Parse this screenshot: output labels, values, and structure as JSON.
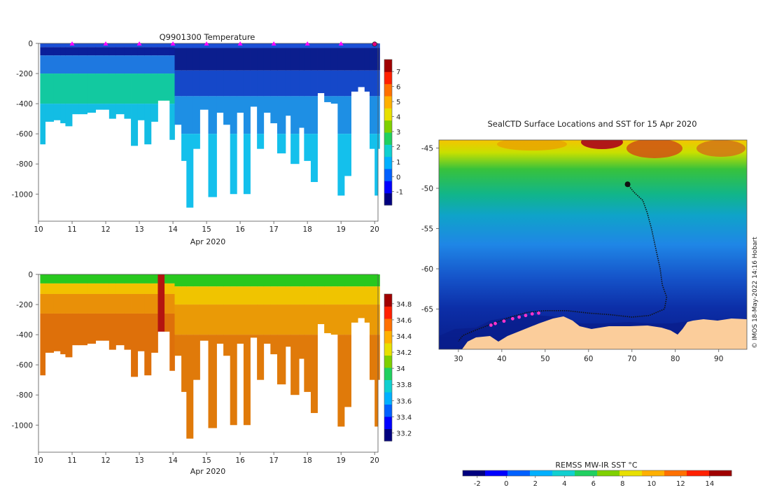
{
  "chart_data": [
    {
      "type": "heatmap",
      "title": "Q9901300  Temperature",
      "xlabel": "Apr 2020",
      "ylabel": "",
      "xlim": [
        10,
        20
      ],
      "ylim": [
        -1180,
        0
      ],
      "x_ticks": [
        "10",
        "11",
        "12",
        "13",
        "14",
        "15",
        "16",
        "17",
        "18",
        "19",
        "20"
      ],
      "y_ticks": [
        "0",
        "-200",
        "-400",
        "-600",
        "-800",
        "-1000"
      ],
      "colorbar": {
        "ticks": [
          "-1",
          "0",
          "1",
          "2",
          "3",
          "4",
          "5",
          "6",
          "7"
        ],
        "range": [
          -1.9,
          7.8
        ]
      },
      "surface_marker_days": [
        11,
        12,
        13,
        14,
        15,
        16,
        17,
        18,
        19
      ],
      "profiles": [
        {
          "day": 10.05,
          "depth": 670
        },
        {
          "day": 10.2,
          "depth": 520
        },
        {
          "day": 10.45,
          "depth": 510
        },
        {
          "day": 10.65,
          "depth": 530
        },
        {
          "day": 10.8,
          "depth": 550
        },
        {
          "day": 11.0,
          "depth": 470
        },
        {
          "day": 11.2,
          "depth": 470
        },
        {
          "day": 11.45,
          "depth": 460
        },
        {
          "day": 11.7,
          "depth": 440
        },
        {
          "day": 11.95,
          "depth": 440
        },
        {
          "day": 12.1,
          "depth": 500
        },
        {
          "day": 12.3,
          "depth": 470
        },
        {
          "day": 12.55,
          "depth": 500
        },
        {
          "day": 12.75,
          "depth": 680
        },
        {
          "day": 12.95,
          "depth": 510
        },
        {
          "day": 13.15,
          "depth": 670
        },
        {
          "day": 13.35,
          "depth": 520
        },
        {
          "day": 13.55,
          "depth": 380
        },
        {
          "day": 13.75,
          "depth": 380
        },
        {
          "day": 13.9,
          "depth": 640
        },
        {
          "day": 14.05,
          "depth": 540
        },
        {
          "day": 14.25,
          "depth": 780
        },
        {
          "day": 14.4,
          "depth": 1090
        },
        {
          "day": 14.6,
          "depth": 700
        },
        {
          "day": 14.8,
          "depth": 440
        },
        {
          "day": 15.05,
          "depth": 1020
        },
        {
          "day": 15.3,
          "depth": 460
        },
        {
          "day": 15.5,
          "depth": 540
        },
        {
          "day": 15.7,
          "depth": 1000
        },
        {
          "day": 15.9,
          "depth": 460
        },
        {
          "day": 16.1,
          "depth": 1000
        },
        {
          "day": 16.3,
          "depth": 420
        },
        {
          "day": 16.5,
          "depth": 700
        },
        {
          "day": 16.7,
          "depth": 460
        },
        {
          "day": 16.9,
          "depth": 530
        },
        {
          "day": 17.1,
          "depth": 730
        },
        {
          "day": 17.35,
          "depth": 480
        },
        {
          "day": 17.5,
          "depth": 800
        },
        {
          "day": 17.75,
          "depth": 560
        },
        {
          "day": 17.9,
          "depth": 780
        },
        {
          "day": 18.1,
          "depth": 920
        },
        {
          "day": 18.3,
          "depth": 330
        },
        {
          "day": 18.5,
          "depth": 390
        },
        {
          "day": 18.7,
          "depth": 400
        },
        {
          "day": 18.9,
          "depth": 1010
        },
        {
          "day": 19.1,
          "depth": 880
        },
        {
          "day": 19.3,
          "depth": 320
        },
        {
          "day": 19.5,
          "depth": 290
        },
        {
          "day": 19.7,
          "depth": 320
        },
        {
          "day": 19.85,
          "depth": 700
        },
        {
          "day": 20.0,
          "depth": 1010
        },
        {
          "day": 20.1,
          "depth": 700
        }
      ]
    },
    {
      "type": "heatmap",
      "title": "",
      "xlabel": "Apr 2020",
      "ylabel": "",
      "xlim": [
        10,
        20
      ],
      "ylim": [
        -1180,
        0
      ],
      "x_ticks": [
        "10",
        "11",
        "12",
        "13",
        "14",
        "15",
        "16",
        "17",
        "18",
        "19",
        "20"
      ],
      "y_ticks": [
        "0",
        "-200",
        "-400",
        "-600",
        "-800",
        "-1000"
      ],
      "colorbar": {
        "ticks": [
          "33.2",
          "33.4",
          "33.6",
          "33.8",
          "34",
          "34.2",
          "34.4",
          "34.6",
          "34.8"
        ],
        "range": [
          33.1,
          34.92
        ]
      },
      "profiles": "same casts as temperature panel"
    },
    {
      "type": "heatmap",
      "title": "SealCTD Surface Locations and SST for 15 Apr 2020",
      "xlabel": "",
      "ylabel": "",
      "xlim": [
        25.5,
        96.5
      ],
      "ylim": [
        -70,
        -44
      ],
      "x_ticks": [
        "30",
        "40",
        "50",
        "60",
        "70",
        "80",
        "90"
      ],
      "y_ticks": [
        "-45",
        "-50",
        "-55",
        "-60",
        "-65"
      ],
      "colorbar": {
        "label": "REMSS MW-IR SST °C",
        "ticks": [
          "-2",
          "0",
          "2",
          "4",
          "6",
          "8",
          "10",
          "12",
          "14"
        ],
        "range": [
          -3,
          15.5
        ]
      },
      "credit": "© IMOS 18-May-2022 14:16 Hobart",
      "track": [
        [
          69,
          -49.5
        ],
        [
          70.5,
          -50.5
        ],
        [
          72.5,
          -51.5
        ],
        [
          73.5,
          -53
        ],
        [
          74.5,
          -55
        ],
        [
          75.5,
          -57.5
        ],
        [
          76.5,
          -60
        ],
        [
          77,
          -62
        ],
        [
          78,
          -63.5
        ],
        [
          77.5,
          -65
        ],
        [
          74,
          -65.8
        ],
        [
          70,
          -66
        ],
        [
          65,
          -65.7
        ],
        [
          60,
          -65.5
        ],
        [
          55,
          -65.2
        ],
        [
          50,
          -65.2
        ],
        [
          46,
          -65.4
        ],
        [
          42,
          -66
        ],
        [
          38,
          -66.8
        ],
        [
          34,
          -67.6
        ],
        [
          31,
          -68.3
        ],
        [
          30,
          -69
        ]
      ],
      "profile_positions": [
        [
          48.5,
          -65.5
        ],
        [
          47,
          -65.6
        ],
        [
          45.5,
          -65.8
        ],
        [
          44,
          -66
        ],
        [
          42.5,
          -66.2
        ],
        [
          40.5,
          -66.5
        ],
        [
          38.5,
          -66.8
        ],
        [
          37.5,
          -67
        ]
      ]
    }
  ]
}
